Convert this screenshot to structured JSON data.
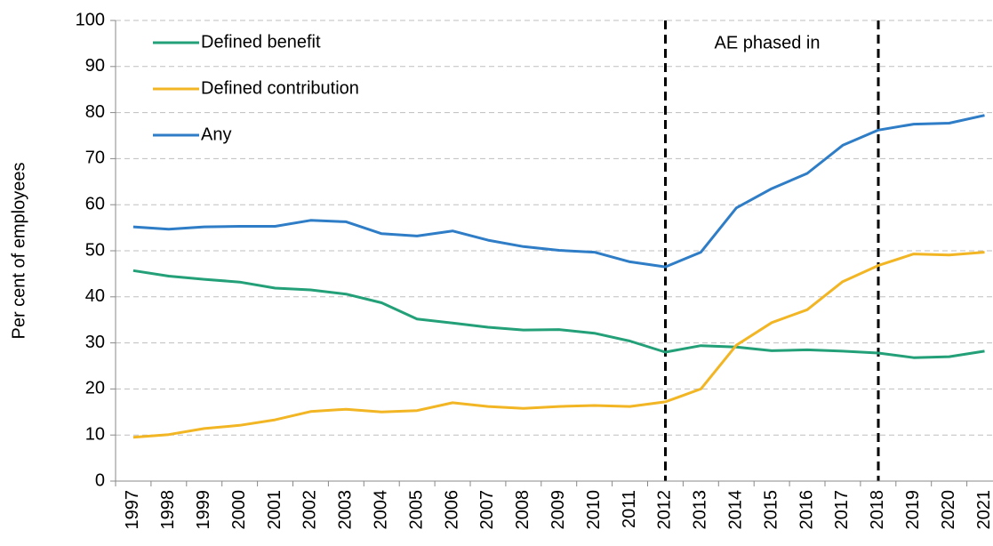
{
  "chart_data": {
    "type": "line",
    "y_label": "Per cent of employees",
    "annotation": "AE phased in",
    "categories": [
      "1997",
      "1998",
      "1999",
      "2000",
      "2001",
      "2002",
      "2003",
      "2004",
      "2005",
      "2006",
      "2007",
      "2008",
      "2009",
      "2010",
      "2011",
      "2012",
      "2013",
      "2014",
      "2015",
      "2016",
      "2017",
      "2018",
      "2019",
      "2020",
      "2021"
    ],
    "series": [
      {
        "name": "Defined benefit",
        "color": "#23a078",
        "values": [
          45.7,
          44.5,
          43.8,
          43.2,
          41.9,
          41.5,
          40.6,
          38.7,
          35.2,
          34.3,
          33.4,
          32.8,
          32.9,
          32.1,
          30.4,
          28.0,
          29.4,
          29.1,
          28.3,
          28.5,
          28.2,
          27.8,
          26.8,
          27.0,
          28.2
        ]
      },
      {
        "name": "Defined contribution",
        "color": "#f2b524",
        "values": [
          9.5,
          10.1,
          11.4,
          12.1,
          13.3,
          15.1,
          15.6,
          15.0,
          15.3,
          17.0,
          16.2,
          15.8,
          16.2,
          16.4,
          16.2,
          17.2,
          20.0,
          29.5,
          34.4,
          37.2,
          43.3,
          46.8,
          49.3,
          49.1,
          49.7
        ]
      },
      {
        "name": "Any",
        "color": "#2e7dc6",
        "values": [
          55.2,
          54.7,
          55.2,
          55.3,
          55.3,
          56.6,
          56.3,
          53.7,
          53.2,
          54.3,
          52.3,
          50.9,
          50.1,
          49.7,
          47.6,
          46.5,
          49.7,
          59.3,
          63.5,
          66.8,
          72.9,
          76.2,
          77.5,
          77.7,
          79.4
        ]
      }
    ],
    "ylim": [
      0,
      100
    ],
    "yticks": [
      0,
      10,
      20,
      30,
      40,
      50,
      60,
      70,
      80,
      90,
      100
    ],
    "grid": true,
    "legend": "upper left"
  }
}
